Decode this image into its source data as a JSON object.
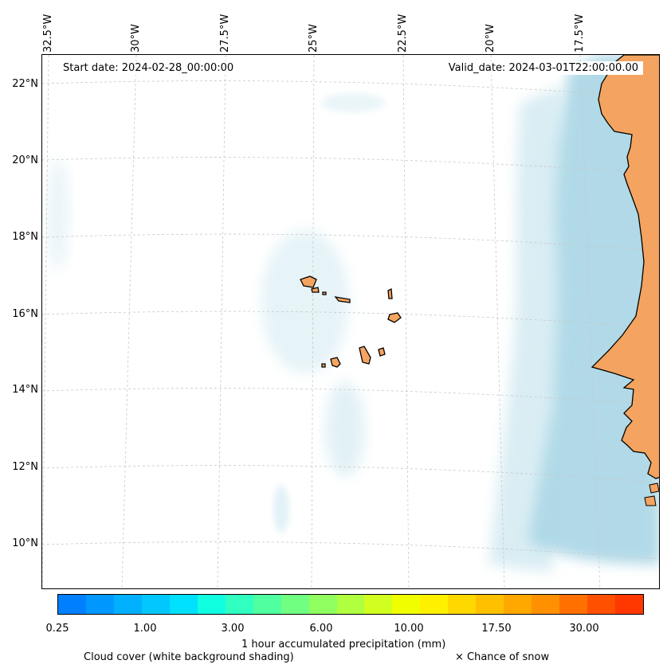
{
  "longitude_labels": [
    "32.5°W",
    "30°W",
    "27.5°W",
    "25°W",
    "22.5°W",
    "20°W",
    "17.5°W"
  ],
  "latitude_labels": [
    "22°N",
    "20°N",
    "18°N",
    "16°N",
    "14°N",
    "12°N",
    "10°N"
  ],
  "start_date_label": "Start date: 2024-02-28_00:00:00",
  "valid_date_label": "Valid_date: 2024-03-01T22:00:00.00",
  "colorbar": {
    "title": "1 hour accumulated precipitation (mm)",
    "tick_labels": [
      "0.25",
      "1.00",
      "3.00",
      "6.00",
      "10.00",
      "17.50",
      "30.00"
    ],
    "colors": [
      "#0080ff",
      "#0098ff",
      "#00b0ff",
      "#00c8ff",
      "#00e0ff",
      "#10ffe0",
      "#30ffc0",
      "#50ffa0",
      "#70ff80",
      "#90ff60",
      "#b0ff40",
      "#d0ff20",
      "#f0ff00",
      "#fff000",
      "#ffd800",
      "#ffc000",
      "#ffa800",
      "#ff9000",
      "#ff7000",
      "#ff5000",
      "#ff3800"
    ]
  },
  "legend": {
    "cloud_cover": "Cloud cover (white background shading)",
    "snow": "× Chance of snow"
  },
  "colors": {
    "land": "#f4a460",
    "cloud": "#add8e6",
    "coast": "#000000"
  }
}
